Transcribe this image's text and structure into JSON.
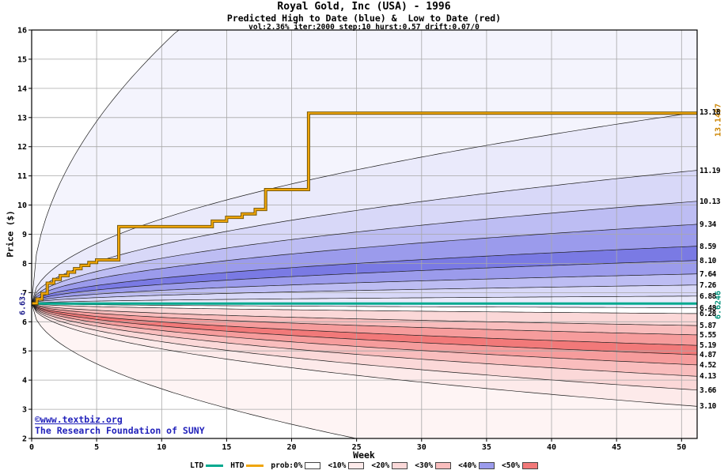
{
  "chart_data": {
    "type": "area",
    "title": "Royal Gold, Inc (USA) - 1996",
    "subtitle": "Predicted High to Date (blue) &  Low to Date (red)",
    "params_line": "vol:2.36% iter:2000 step:10 hurst:0.57 drift:0.07/0",
    "x_axis": {
      "label": "Week",
      "min": 0,
      "max": 51.2,
      "ticks": [
        0,
        5,
        10,
        15,
        20,
        25,
        30,
        35,
        40,
        45,
        50
      ]
    },
    "y_axis": {
      "label": "Price ($)",
      "min": 2,
      "max": 16,
      "tick_step": 1
    },
    "start": {
      "week": 0,
      "price": 6.63,
      "label": "6.63:"
    },
    "series": {
      "ltd": {
        "name": "LTD",
        "value": 6.6246,
        "label": "6.6246",
        "color": "#00a98f"
      },
      "htd": {
        "name": "HTD",
        "final": 13.1497,
        "label": "13.1497",
        "color": "#efa50a",
        "outline": "#6b4f00",
        "steps": [
          [
            0,
            6.63
          ],
          [
            0.4,
            6.78
          ],
          [
            0.8,
            6.97
          ],
          [
            1.2,
            7.32
          ],
          [
            1.7,
            7.45
          ],
          [
            2.2,
            7.58
          ],
          [
            2.8,
            7.7
          ],
          [
            3.3,
            7.82
          ],
          [
            3.8,
            7.93
          ],
          [
            4.4,
            8.03
          ],
          [
            5.0,
            8.12
          ],
          [
            6.7,
            9.26
          ],
          [
            13.9,
            9.45
          ],
          [
            15.0,
            9.58
          ],
          [
            16.2,
            9.7
          ],
          [
            17.2,
            9.85
          ],
          [
            18.0,
            10.53
          ],
          [
            21.3,
            13.15
          ],
          [
            51.2,
            13.15
          ]
        ]
      }
    },
    "fan": {
      "exponent": 0.5,
      "upper_boundaries": [
        6.48,
        6.88,
        7.26,
        7.64,
        8.1,
        8.59,
        9.34,
        10.13,
        11.19,
        13.18,
        26.6
      ],
      "upper_band_colors": [
        "#eaeafb",
        "#d8d8f8",
        "#bdbdf3",
        "#9b9bec",
        "#7a7ae4",
        "#9b9bec",
        "#bdbdf3",
        "#d8d8f8",
        "#eaeafb",
        "#f4f4fd"
      ],
      "lower_boundaries": [
        6.48,
        6.28,
        5.87,
        5.55,
        5.19,
        4.87,
        4.52,
        4.13,
        3.66,
        3.1,
        0.0
      ],
      "lower_band_colors": [
        "#ffffff",
        "#fbd8d8",
        "#f9bdbd",
        "#f69c9c",
        "#f27979",
        "#f69c9c",
        "#f9bdbd",
        "#fbd8d8",
        "#fdeaea",
        "#fef4f4"
      ],
      "right_labels": [
        "13.18",
        "11.19",
        "10.13",
        "9.34",
        "8.59",
        "8.10",
        "7.64",
        "7.26",
        "6.88",
        "6.48",
        "6.28",
        "5.87",
        "5.55",
        "5.19",
        "4.87",
        "4.52",
        "4.13",
        "3.66",
        "3.10"
      ]
    },
    "legend": [
      {
        "label": "LTD",
        "type": "line",
        "color": "#00a98f"
      },
      {
        "label": "HTD",
        "type": "line",
        "color": "#efa50a"
      },
      {
        "label": "prob:0%",
        "type": "box",
        "color": "#ffffff"
      },
      {
        "label": "<10%",
        "type": "box",
        "color": "#fdeaea"
      },
      {
        "label": "<20%",
        "type": "box",
        "color": "#fbd8d8"
      },
      {
        "label": "<30%",
        "type": "box",
        "color": "#f9bdbd"
      },
      {
        "label": "<40%",
        "type": "box",
        "color": "#9b9bec"
      },
      {
        "label": "<50%",
        "type": "box",
        "color": "#f27979"
      }
    ],
    "colors": {
      "grid": "#a8a8a8",
      "boundary": "#1c1c1c",
      "axis": "#000000"
    }
  },
  "footer": {
    "copyright_link": "©www.textbiz.org",
    "copyright_org": "The Research Foundation of SUNY"
  }
}
